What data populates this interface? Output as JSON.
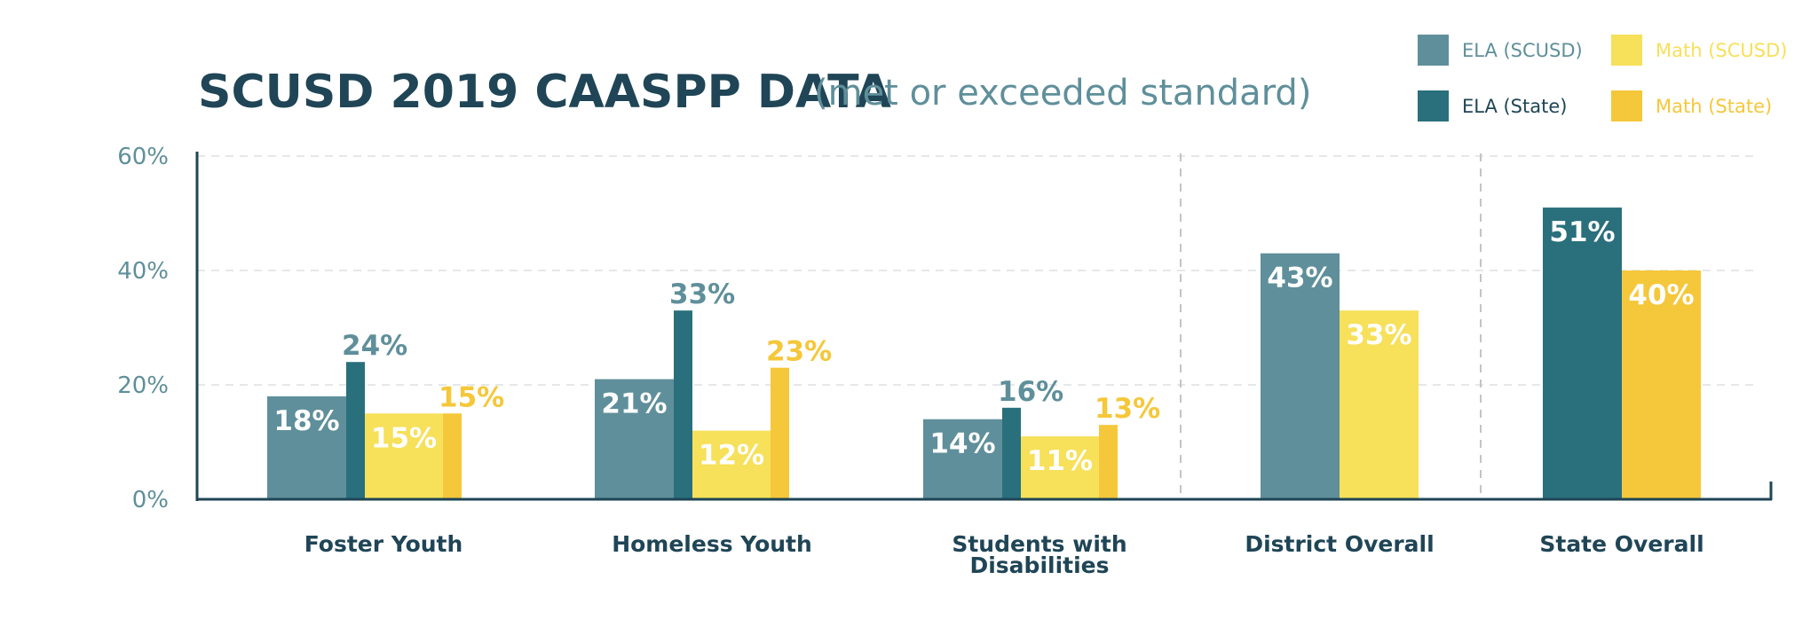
{
  "chart_data": {
    "type": "bar",
    "title": "SCUSD 2019 CAASPP DATA",
    "subtitle": "(met or exceeded standard)",
    "ylim": [
      0,
      60
    ],
    "yticks": [
      "0%",
      "20%",
      "40%",
      "60%"
    ],
    "grid": true,
    "legend_position": "top-right",
    "colors": {
      "ela_scusd": "#5f8f9a",
      "ela_state": "#2a6f7c",
      "math_scusd": "#f7e05a",
      "math_state": "#f5c73a",
      "title": "#1f4556",
      "axis": "#1f4556"
    },
    "series": [
      {
        "name": "ELA (SCUSD)",
        "key": "ela_scusd"
      },
      {
        "name": "ELA (State)",
        "key": "ela_state"
      },
      {
        "name": "Math (SCUSD)",
        "key": "math_scusd"
      },
      {
        "name": "Math (State)",
        "key": "math_state"
      }
    ],
    "groups": [
      {
        "category": [
          "Foster Youth"
        ],
        "bars": [
          {
            "series": "ela_scusd",
            "value": 18,
            "label": "18%"
          },
          {
            "series": "ela_state",
            "value": 24,
            "label": "24%"
          },
          {
            "series": "math_scusd",
            "value": 15,
            "label": "15%"
          },
          {
            "series": "math_state",
            "value": 15,
            "label": "15%"
          }
        ]
      },
      {
        "category": [
          "Homeless Youth"
        ],
        "bars": [
          {
            "series": "ela_scusd",
            "value": 21,
            "label": "21%"
          },
          {
            "series": "ela_state",
            "value": 33,
            "label": "33%"
          },
          {
            "series": "math_scusd",
            "value": 12,
            "label": "12%"
          },
          {
            "series": "math_state",
            "value": 23,
            "label": "23%"
          }
        ]
      },
      {
        "category": [
          "Students with",
          "Disabilities"
        ],
        "bars": [
          {
            "series": "ela_scusd",
            "value": 14,
            "label": "14%"
          },
          {
            "series": "ela_state",
            "value": 16,
            "label": "16%"
          },
          {
            "series": "math_scusd",
            "value": 11,
            "label": "11%"
          },
          {
            "series": "math_state",
            "value": 13,
            "label": "13%"
          }
        ]
      },
      {
        "category": [
          "District Overall"
        ],
        "bars": [
          {
            "series": "ela_scusd",
            "value": 43,
            "label": "43%"
          },
          {
            "series": "math_scusd",
            "value": 33,
            "label": "33%"
          }
        ]
      },
      {
        "category": [
          "State Overall"
        ],
        "bars": [
          {
            "series": "ela_state",
            "value": 51,
            "label": "51%"
          },
          {
            "series": "math_state",
            "value": 40,
            "label": "40%"
          }
        ]
      }
    ]
  }
}
